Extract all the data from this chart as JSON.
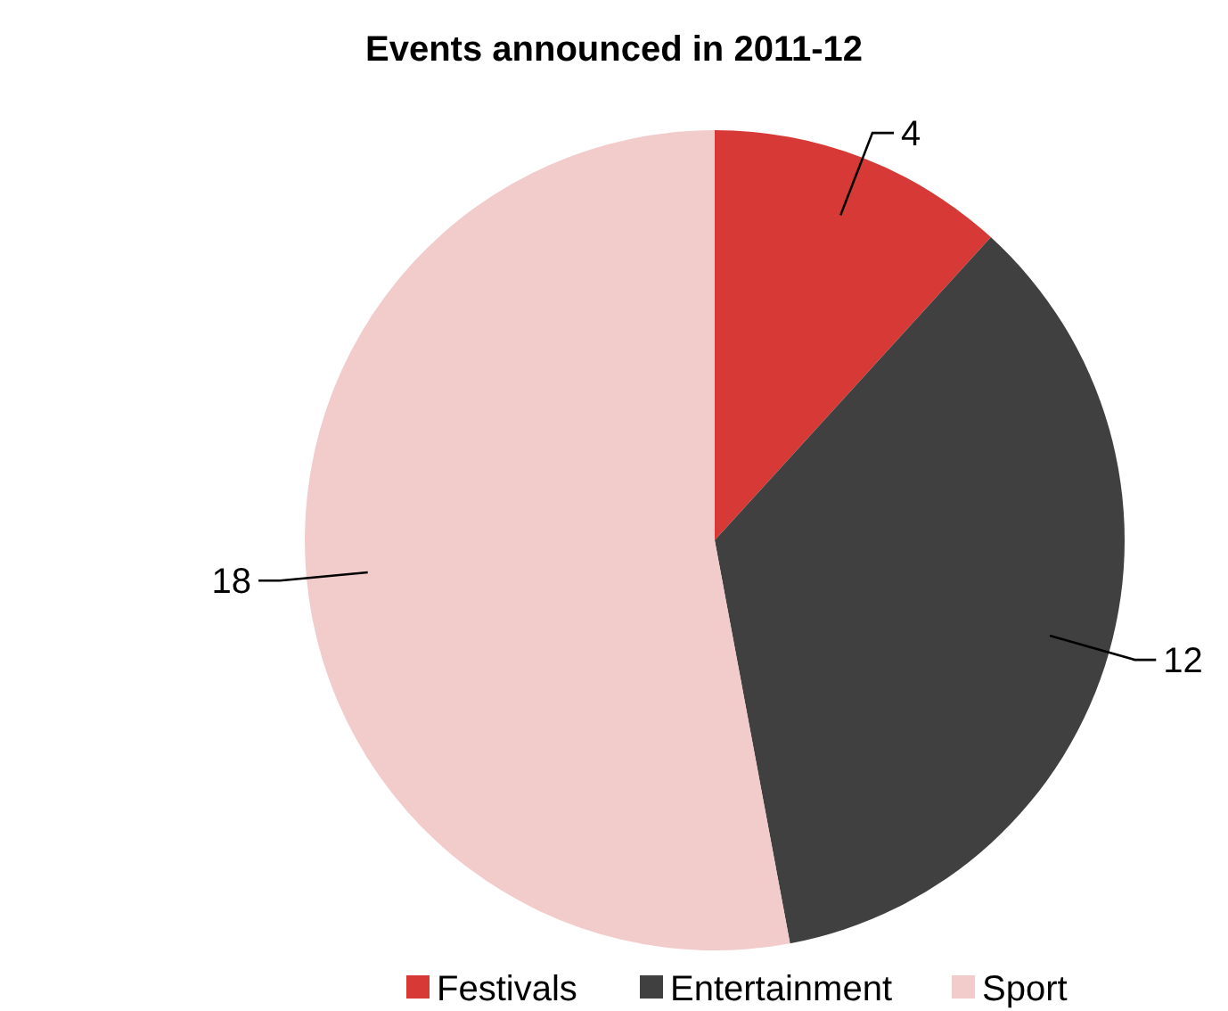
{
  "chart_data": {
    "type": "pie",
    "title": "Events announced  in 2011-12",
    "categories": [
      "Festivals",
      "Entertainment",
      "Sport"
    ],
    "values": [
      4,
      12,
      18
    ],
    "colors": [
      "#d73a36",
      "#404040",
      "#f2cbcb"
    ],
    "data_labels": true,
    "legend": "bottom"
  }
}
